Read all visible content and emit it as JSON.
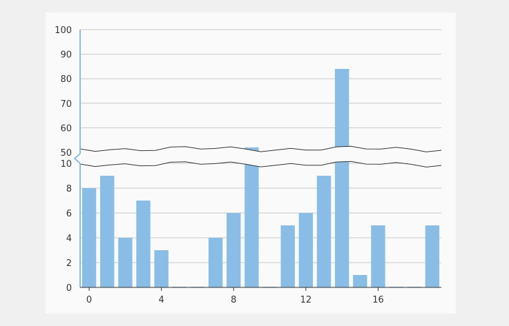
{
  "chart_data": {
    "type": "bar",
    "title": "",
    "xlabel": "",
    "ylabel": "",
    "x_ticks": [
      "0",
      "4",
      "8",
      "12",
      "16"
    ],
    "x_tick_positions": [
      0,
      4,
      8,
      12,
      16
    ],
    "y_ticks_lower": [
      "0",
      "2",
      "4",
      "6",
      "8",
      "10"
    ],
    "y_ticks_upper": [
      "50",
      "60",
      "70",
      "80",
      "90",
      "100"
    ],
    "y_axis_break": {
      "lower_range": [
        0,
        10
      ],
      "upper_range": [
        50,
        100
      ]
    },
    "grid": "horizontal",
    "legend": "none",
    "categories": [
      0,
      1,
      2,
      3,
      4,
      5,
      6,
      7,
      8,
      9,
      10,
      11,
      12,
      13,
      14,
      15,
      16,
      17,
      18,
      19
    ],
    "values": [
      8,
      9,
      4,
      7,
      3,
      0,
      0,
      4,
      6,
      52,
      0,
      5,
      6,
      9,
      84,
      1,
      5,
      0,
      0,
      5
    ],
    "bar_color": "#89bde6",
    "axis_color": "#89bde6",
    "grid_color": "#c8c8c8"
  }
}
